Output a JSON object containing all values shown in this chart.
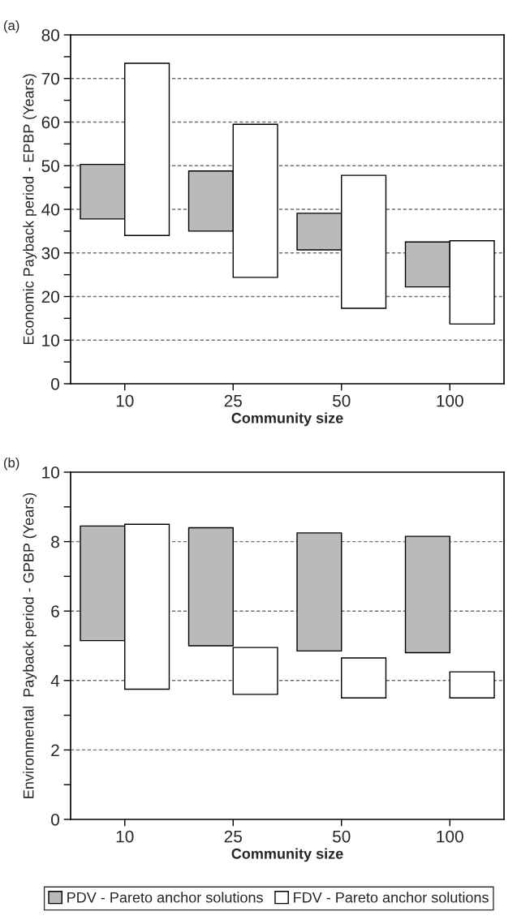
{
  "chart_data": [
    {
      "type": "bar",
      "categories": [
        "10",
        "25",
        "50",
        "100"
      ],
      "xlabel": "Community size",
      "ylabel": "Economic Payback period - EPBP (Years)",
      "annotations": [
        "(a)"
      ],
      "series": [
        {
          "name": "PDV - Pareto anchor solutions",
          "color": "#bababa",
          "base": [
            37.8,
            35.0,
            30.7,
            22.2
          ],
          "values": [
            12.5,
            13.8,
            8.4,
            10.3
          ]
        },
        {
          "name": "FDV - Pareto anchor solutions",
          "color": "#ffffff",
          "base": [
            34.0,
            24.4,
            17.3,
            13.7
          ],
          "values": [
            39.5,
            35.1,
            30.5,
            19.1
          ]
        }
      ],
      "ylim": [
        0,
        80
      ],
      "yticks": [
        0,
        {
          "value": 5,
          "label": null
        },
        10,
        {
          "value": 15,
          "label": null
        },
        20,
        {
          "value": 25,
          "label": null
        },
        30,
        {
          "value": 35,
          "label": null
        },
        40,
        {
          "value": 45,
          "label": null
        },
        50,
        {
          "value": 55,
          "label": null
        },
        60,
        {
          "value": 65,
          "label": null
        },
        70,
        {
          "value": 75,
          "label": null
        },
        80
      ],
      "grid": "y",
      "legend": "bottom"
    },
    {
      "type": "bar",
      "categories": [
        "10",
        "25",
        "50",
        "100"
      ],
      "xlabel": "Community size",
      "ylabel": "Environmental  Payback period - GPBP (Years)",
      "annotations": [
        "(b)"
      ],
      "series": [
        {
          "color": "#bababa",
          "base": [
            5.15,
            5.0,
            4.85,
            4.8
          ],
          "values": [
            3.3,
            3.4,
            3.4,
            3.35
          ]
        },
        {
          "color": "#ffffff",
          "base": [
            3.75,
            3.6,
            3.5,
            3.5
          ],
          "values": [
            4.75,
            1.35,
            1.15,
            0.75
          ]
        }
      ],
      "ylim": [
        0,
        10
      ],
      "yticks": [
        0,
        {
          "value": 1,
          "label": null
        },
        2,
        {
          "value": 3,
          "label": null
        },
        4,
        {
          "value": 5,
          "label": null
        },
        6,
        {
          "value": 7,
          "label": null
        },
        8,
        {
          "value": 9,
          "label": null
        },
        10
      ],
      "grid": "y"
    }
  ]
}
